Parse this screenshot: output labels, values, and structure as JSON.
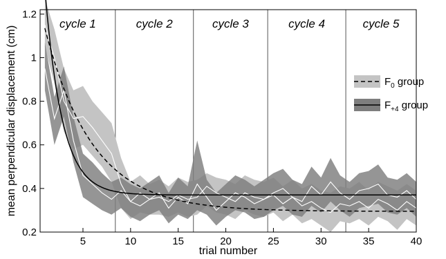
{
  "chart_data": {
    "type": "line",
    "title": "",
    "xlabel": "trial number",
    "ylabel": "mean perpendicular displacement (cm)",
    "xlim": [
      0.5,
      40
    ],
    "ylim": [
      0.2,
      1.22
    ],
    "xticks": [
      5,
      10,
      15,
      20,
      25,
      30,
      35,
      40
    ],
    "yticks": [
      0.2,
      0.4,
      0.6,
      0.8,
      1,
      1.2
    ],
    "xtick_labels": [
      "5",
      "10",
      "15",
      "20",
      "25",
      "30",
      "35",
      "40"
    ],
    "ytick_labels": [
      "0.2",
      "0.4",
      "0.6",
      "0.8",
      "1",
      "1.2"
    ],
    "grid": false,
    "cycles": [
      {
        "label": "cycle 1",
        "start": 0.5,
        "end": 8.4
      },
      {
        "label": "cycle 2",
        "start": 8.4,
        "end": 16.6
      },
      {
        "label": "cycle 3",
        "start": 16.6,
        "end": 24.4
      },
      {
        "label": "cycle 4",
        "start": 24.4,
        "end": 32.6
      },
      {
        "label": "cycle 5",
        "start": 32.6,
        "end": 40
      }
    ],
    "legend": {
      "position": "right",
      "entries": [
        {
          "base": "F",
          "sub": "0",
          "suffix": " group"
        },
        {
          "base": "F",
          "sub": "+4",
          "suffix": " group"
        }
      ]
    },
    "colors": {
      "f0_band": "#c4c4c4",
      "f4_band": "#7e7e7e",
      "mean_line": "#ffffff",
      "fit_line": "#000000"
    },
    "x": [
      1,
      2,
      3,
      4,
      5,
      6,
      7,
      8,
      9,
      10,
      11,
      12,
      13,
      14,
      15,
      16,
      17,
      18,
      19,
      20,
      21,
      22,
      23,
      24,
      25,
      26,
      27,
      28,
      29,
      30,
      31,
      32,
      33,
      34,
      35,
      36,
      37,
      38,
      39,
      40
    ],
    "series": [
      {
        "id": "f0",
        "mean": [
          1.15,
          1.0,
          0.8,
          0.72,
          0.73,
          0.68,
          0.62,
          0.56,
          0.42,
          0.34,
          0.38,
          0.35,
          0.36,
          0.34,
          0.37,
          0.35,
          0.36,
          0.41,
          0.38,
          0.36,
          0.34,
          0.38,
          0.36,
          0.35,
          0.37,
          0.33,
          0.36,
          0.32,
          0.34,
          0.31,
          0.29,
          0.33,
          0.32,
          0.34,
          0.31,
          0.35,
          0.33,
          0.3,
          0.34,
          0.31
        ],
        "upper": [
          1.27,
          1.13,
          0.95,
          0.85,
          0.87,
          0.8,
          0.75,
          0.7,
          0.54,
          0.43,
          0.46,
          0.42,
          0.44,
          0.41,
          0.45,
          0.43,
          0.44,
          0.47,
          0.45,
          0.44,
          0.42,
          0.46,
          0.44,
          0.43,
          0.45,
          0.41,
          0.44,
          0.4,
          0.42,
          0.39,
          0.38,
          0.41,
          0.4,
          0.43,
          0.39,
          0.43,
          0.41,
          0.39,
          0.42,
          0.39
        ],
        "lower": [
          1.05,
          0.88,
          0.66,
          0.58,
          0.6,
          0.55,
          0.5,
          0.43,
          0.31,
          0.26,
          0.29,
          0.28,
          0.28,
          0.27,
          0.29,
          0.27,
          0.28,
          0.32,
          0.29,
          0.28,
          0.26,
          0.3,
          0.28,
          0.27,
          0.29,
          0.25,
          0.28,
          0.24,
          0.26,
          0.23,
          0.2,
          0.25,
          0.24,
          0.26,
          0.23,
          0.27,
          0.25,
          0.21,
          0.26,
          0.23
        ]
      },
      {
        "id": "f4",
        "mean": [
          0.95,
          0.72,
          0.85,
          0.62,
          0.46,
          0.42,
          0.38,
          0.35,
          0.39,
          0.34,
          0.32,
          0.35,
          0.38,
          0.31,
          0.36,
          0.33,
          0.42,
          0.36,
          0.3,
          0.34,
          0.38,
          0.36,
          0.33,
          0.35,
          0.38,
          0.4,
          0.36,
          0.34,
          0.41,
          0.37,
          0.43,
          0.38,
          0.35,
          0.39,
          0.4,
          0.42,
          0.37,
          0.36,
          0.39,
          0.35
        ],
        "upper": [
          1.07,
          0.82,
          0.96,
          0.73,
          0.56,
          0.52,
          0.47,
          0.43,
          0.45,
          0.42,
          0.4,
          0.43,
          0.46,
          0.38,
          0.45,
          0.41,
          0.62,
          0.44,
          0.38,
          0.42,
          0.46,
          0.44,
          0.41,
          0.44,
          0.47,
          0.49,
          0.44,
          0.42,
          0.5,
          0.45,
          0.54,
          0.46,
          0.43,
          0.47,
          0.48,
          0.51,
          0.45,
          0.44,
          0.47,
          0.43
        ],
        "lower": [
          0.85,
          0.6,
          0.73,
          0.52,
          0.36,
          0.33,
          0.3,
          0.28,
          0.31,
          0.27,
          0.25,
          0.28,
          0.3,
          0.24,
          0.28,
          0.26,
          0.3,
          0.28,
          0.23,
          0.27,
          0.3,
          0.29,
          0.26,
          0.27,
          0.3,
          0.32,
          0.28,
          0.27,
          0.32,
          0.29,
          0.34,
          0.3,
          0.27,
          0.31,
          0.32,
          0.33,
          0.29,
          0.28,
          0.31,
          0.27
        ]
      }
    ],
    "fits": [
      {
        "id": "f0",
        "style": "dashed",
        "asymptote": 0.295,
        "amplitude": 1.05,
        "rate": 0.2,
        "x_start": 1,
        "x_end": 40
      },
      {
        "id": "f4",
        "style": "solid",
        "asymptote": 0.37,
        "amplitude": 1.18,
        "rate": 0.55,
        "x_start": 1,
        "x_end": 40
      }
    ]
  }
}
